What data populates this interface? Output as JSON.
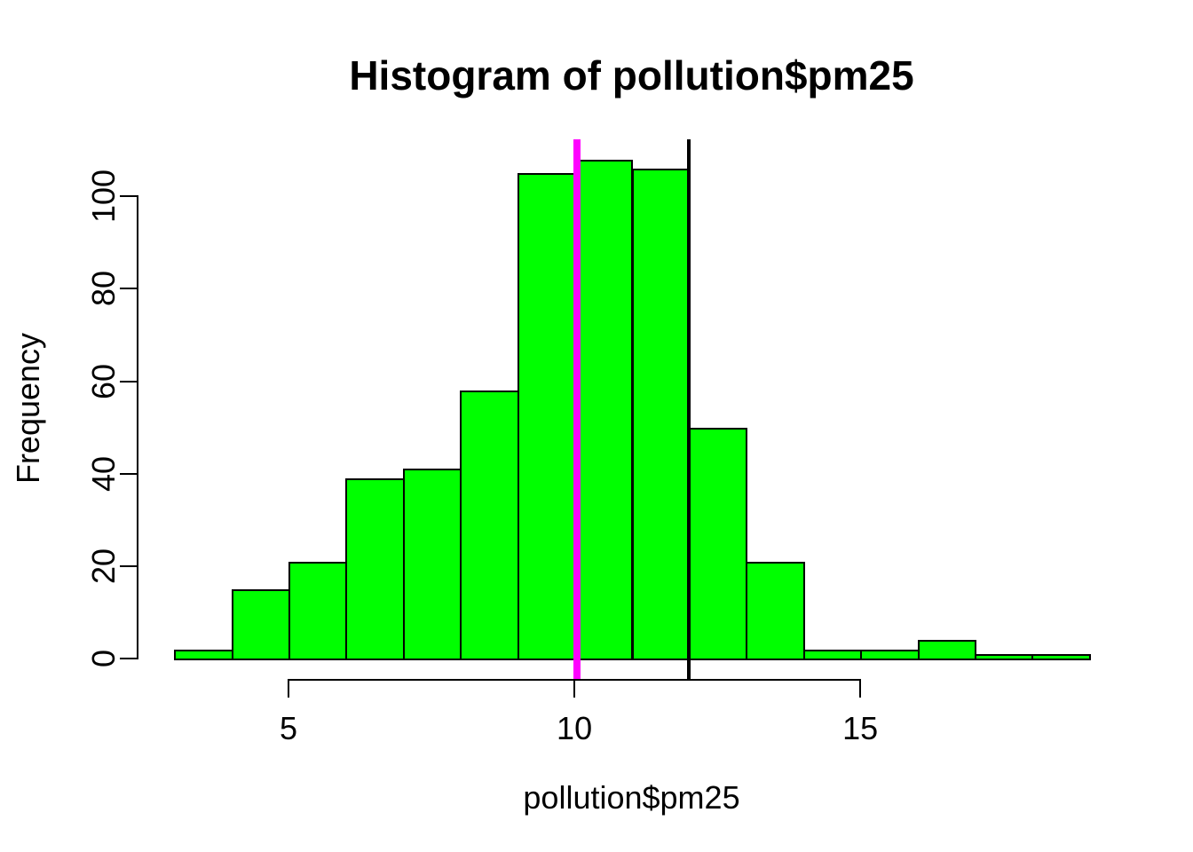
{
  "figure": {
    "title": "Histogram of pollution$pm25",
    "xlabel": "pollution$pm25",
    "ylabel": "Frequency"
  },
  "chart_data": {
    "type": "bar",
    "subtype": "histogram",
    "title": "Histogram of pollution$pm25",
    "xlabel": "pollution$pm25",
    "ylabel": "Frequency",
    "bin_start": 3,
    "bin_width": 1,
    "bin_edges": [
      3,
      4,
      5,
      6,
      7,
      8,
      9,
      10,
      11,
      12,
      13,
      14,
      15,
      16,
      17,
      18,
      19
    ],
    "counts": [
      2,
      15,
      21,
      39,
      41,
      58,
      105,
      108,
      106,
      50,
      21,
      2,
      2,
      4,
      1,
      1
    ],
    "x_ticks": [
      5,
      10,
      15
    ],
    "y_ticks": [
      0,
      20,
      40,
      60,
      80,
      100
    ],
    "x_range": [
      3,
      19
    ],
    "y_range": [
      0,
      108
    ],
    "grid": false,
    "legend": false,
    "vlines": [
      {
        "name": "median-line",
        "value": 10.05,
        "color": "#FF00FF",
        "line_width": 8
      },
      {
        "name": "threshold-line",
        "value": 12,
        "color": "#000000",
        "line_width": 4
      }
    ],
    "colors": {
      "bar_fill": "#00FF00",
      "bar_border": "#000000",
      "background": "#FFFFFF",
      "axis": "#000000"
    }
  }
}
